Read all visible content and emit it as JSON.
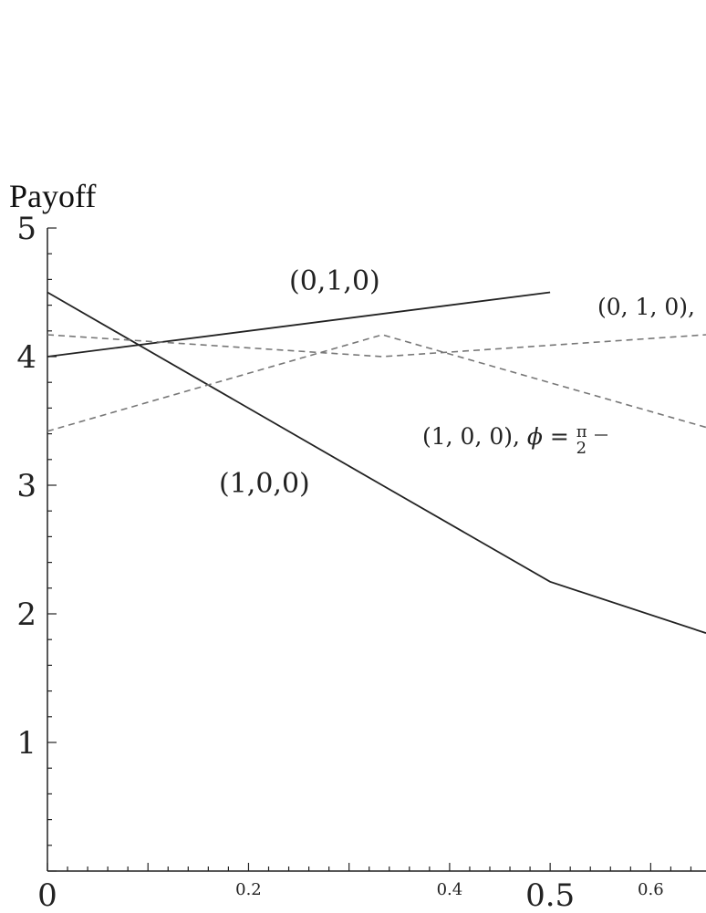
{
  "chart_data": {
    "type": "line",
    "ylabel": "Payoff",
    "xlim": [
      0,
      0.655
    ],
    "ylim": [
      0,
      5
    ],
    "grid": false,
    "legend": "none",
    "y_ticks": [
      "1",
      "2",
      "3",
      "4",
      "5"
    ],
    "x_ticks": [
      "0",
      "0.2",
      "0.4",
      "0.5",
      "0.6"
    ],
    "x_tick_values": [
      0,
      0.2,
      0.4,
      0.5,
      0.6
    ],
    "series": [
      {
        "label": "(0,1,0)",
        "style": "solid",
        "color": "#222222",
        "x": [
          0,
          0.5
        ],
        "y": [
          4.0,
          4.5
        ]
      },
      {
        "label": "(1,0,0)",
        "style": "solid",
        "color": "#222222",
        "x": [
          0,
          0.333,
          0.5,
          0.655
        ],
        "y": [
          4.5,
          3.0,
          2.25,
          1.85
        ]
      },
      {
        "label": "(0, 1, 0),",
        "style": "dashed",
        "color": "#777777",
        "x": [
          0,
          0.333,
          0.655
        ],
        "y": [
          4.17,
          4.0,
          4.17
        ]
      },
      {
        "label": "(1, 0, 0), φ = π/2",
        "style": "dashed",
        "color": "#777777",
        "x": [
          0,
          0.333,
          0.655
        ],
        "y": [
          3.42,
          4.17,
          3.45
        ]
      }
    ]
  }
}
